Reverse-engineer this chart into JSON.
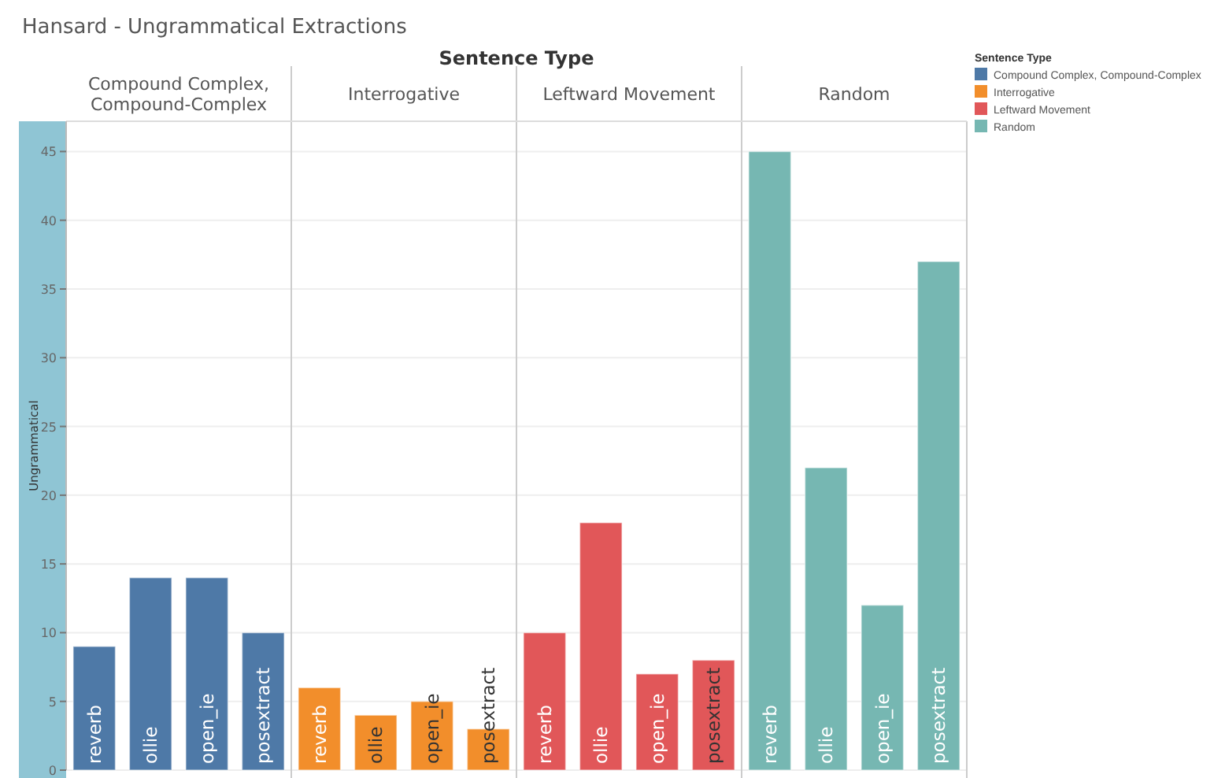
{
  "chart_data": {
    "type": "bar",
    "title": "Hansard - Ungrammatical Extractions",
    "ylabel": "Ungrammatical",
    "legend_title": "Sentence Type",
    "stacked": true,
    "categories": [
      "reverb",
      "ollie",
      "open_ie",
      "posextract",
      "reverb",
      "ollie",
      "open_ie",
      "posextract",
      "reverb",
      "ollie",
      "open_ie",
      "posextract",
      "reverb",
      "ollie",
      "open_ie",
      "posextract"
    ],
    "series": [
      {
        "name": "Compound Complex, Compound-Complex",
        "color": "#4e79a7",
        "values": [
          9,
          14,
          14,
          10,
          null,
          null,
          null,
          null,
          null,
          null,
          null,
          null,
          null,
          null,
          null,
          null
        ]
      },
      {
        "name": "Interrogative",
        "color": "#f28e2b",
        "values": [
          null,
          null,
          null,
          null,
          6,
          4,
          5,
          3,
          null,
          null,
          null,
          null,
          null,
          null,
          null,
          null
        ]
      },
      {
        "name": "Leftward Movement",
        "color": "#e15759",
        "values": [
          null,
          null,
          null,
          null,
          null,
          null,
          null,
          null,
          10,
          18,
          7,
          8,
          null,
          null,
          null,
          null
        ]
      },
      {
        "name": "Random",
        "color": "#76b7b2",
        "values": [
          null,
          null,
          null,
          null,
          null,
          null,
          null,
          null,
          null,
          null,
          null,
          null,
          45,
          22,
          12,
          37
        ]
      }
    ],
    "ylim": [
      0,
      47.2
    ],
    "yticks": [
      0,
      5,
      10,
      15,
      20,
      25,
      30,
      35,
      40,
      45
    ],
    "grid": "y",
    "legend": "top right"
  }
}
